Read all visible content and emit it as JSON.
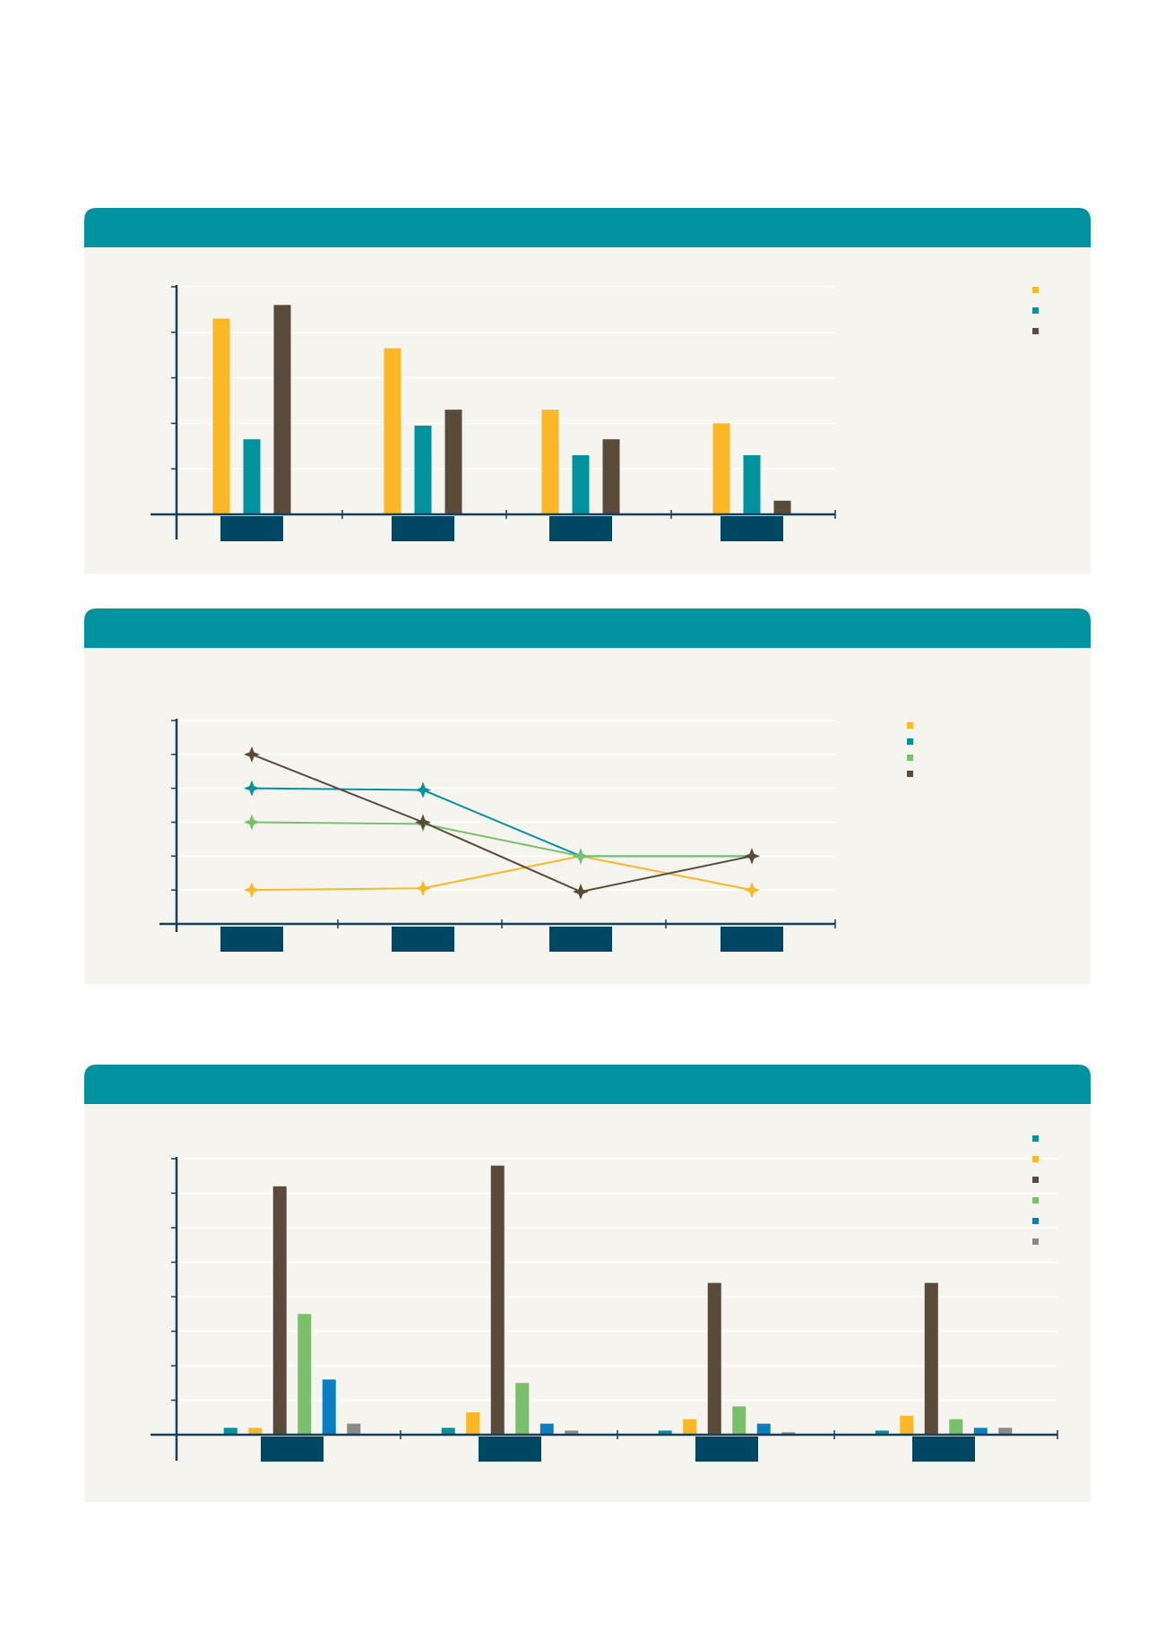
{
  "colors": {
    "header": "#00929F",
    "panel": "#F5F4EE",
    "axis": "#123F5A",
    "grid": "#FFFFFF",
    "tick_box": "#004764",
    "yellow": "#FBB726",
    "teal": "#00929F",
    "brown": "#5A4A3A",
    "green": "#78C06A",
    "blue": "#0A7EC2",
    "gray": "#8A8A8A"
  },
  "chart_data": [
    {
      "type": "bar",
      "title": "",
      "xlabel": "",
      "ylabel": "",
      "ylim": [
        0,
        5
      ],
      "grid": true,
      "legend": "top-right",
      "categories": [
        "",
        "",
        "",
        ""
      ],
      "series": [
        {
          "color": "yellow",
          "values": [
            4.3,
            3.65,
            2.3,
            2.0
          ]
        },
        {
          "color": "teal",
          "values": [
            1.65,
            1.95,
            1.3,
            1.3
          ]
        },
        {
          "color": "brown",
          "values": [
            4.6,
            2.3,
            1.65,
            0.3
          ]
        }
      ]
    },
    {
      "type": "line",
      "title": "",
      "xlabel": "",
      "ylabel": "",
      "ylim": [
        0,
        6
      ],
      "grid": true,
      "legend": "top-right",
      "categories": [
        "",
        "",
        "",
        ""
      ],
      "series": [
        {
          "color": "yellow",
          "values": [
            1.0,
            1.05,
            2.0,
            1.0
          ]
        },
        {
          "color": "teal",
          "values": [
            4.0,
            3.95,
            2.0,
            2.0
          ]
        },
        {
          "color": "green",
          "values": [
            3.0,
            2.95,
            2.0,
            2.0
          ]
        },
        {
          "color": "brown",
          "values": [
            5.0,
            3.0,
            0.95,
            2.0
          ]
        }
      ]
    },
    {
      "type": "bar",
      "title": "",
      "xlabel": "",
      "ylabel": "",
      "ylim": [
        0,
        8
      ],
      "grid": true,
      "legend": "top-right",
      "categories": [
        "",
        "",
        "",
        ""
      ],
      "series": [
        {
          "color": "teal",
          "values": [
            0.2,
            0.2,
            0.12,
            0.12
          ]
        },
        {
          "color": "yellow",
          "values": [
            0.2,
            0.65,
            0.45,
            0.55
          ]
        },
        {
          "color": "brown",
          "values": [
            7.2,
            7.8,
            4.4,
            4.4
          ]
        },
        {
          "color": "green",
          "values": [
            3.5,
            1.5,
            0.82,
            0.45
          ]
        },
        {
          "color": "blue",
          "values": [
            1.6,
            0.32,
            0.32,
            0.2
          ]
        },
        {
          "color": "gray",
          "values": [
            0.32,
            0.12,
            0.07,
            0.2
          ]
        }
      ]
    }
  ]
}
